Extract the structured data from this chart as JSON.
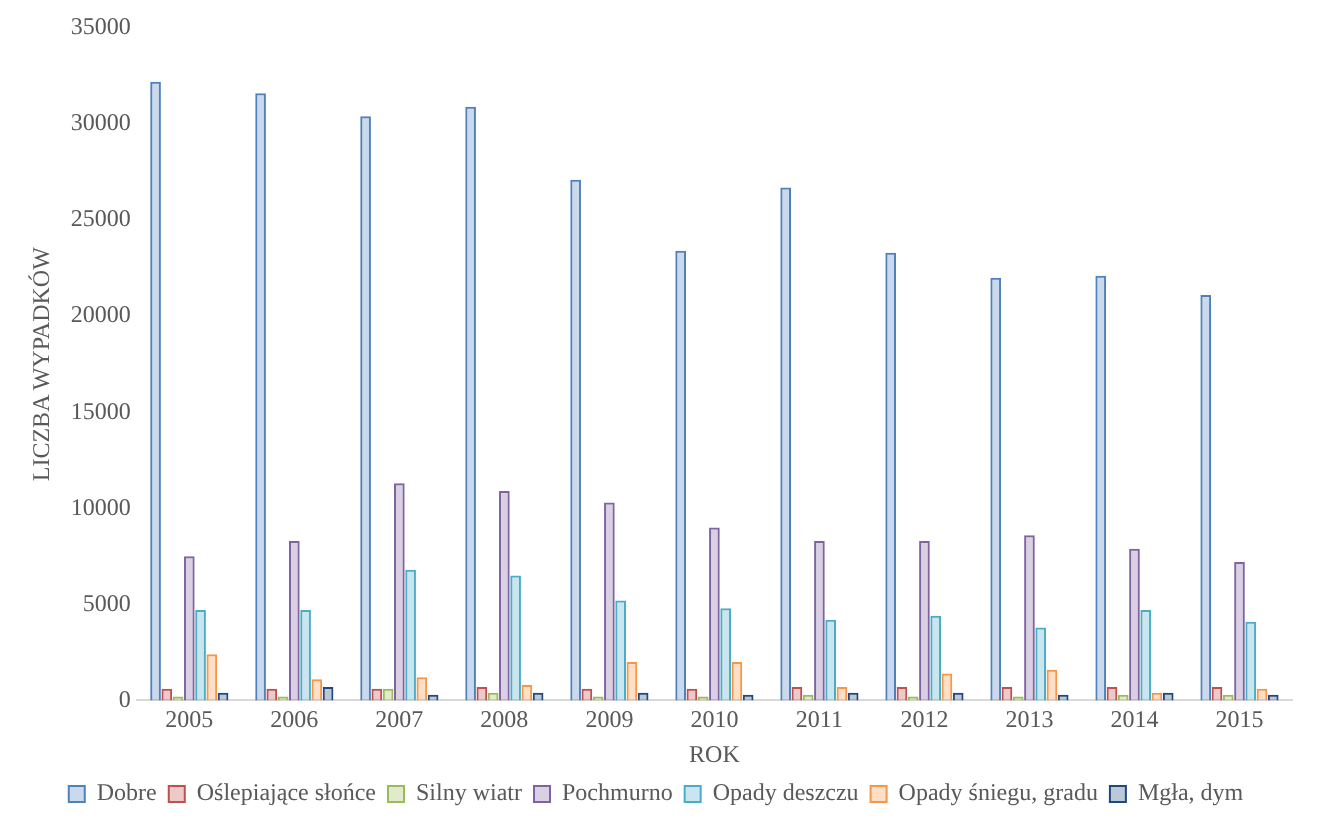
{
  "chart_data": {
    "type": "bar",
    "xlabel": "ROK",
    "ylabel": "LICZBA WYPADKÓW",
    "categories": [
      "2005",
      "2006",
      "2007",
      "2008",
      "2009",
      "2010",
      "2011",
      "2012",
      "2013",
      "2014",
      "2015"
    ],
    "series": [
      {
        "name": "Dobre",
        "color": "#4f81bd",
        "values": [
          32200,
          31600,
          30400,
          30900,
          27100,
          23400,
          26700,
          23300,
          22000,
          22100,
          21100
        ]
      },
      {
        "name": "Oślepiające słońce",
        "color": "#c0504d",
        "values": [
          600,
          600,
          600,
          700,
          600,
          600,
          700,
          700,
          700,
          700,
          700
        ]
      },
      {
        "name": "Silny wiatr",
        "color": "#9bbb59",
        "values": [
          200,
          200,
          600,
          400,
          200,
          200,
          300,
          200,
          200,
          300,
          300
        ]
      },
      {
        "name": "Pochmurno",
        "color": "#8064a2",
        "values": [
          7500,
          8300,
          11300,
          10900,
          10300,
          9000,
          8300,
          8300,
          8600,
          7900,
          7200
        ]
      },
      {
        "name": "Opady deszczu",
        "color": "#4bacc6",
        "values": [
          4700,
          4700,
          6800,
          6500,
          5200,
          4800,
          4200,
          4400,
          3800,
          4700,
          4100
        ]
      },
      {
        "name": "Opady śniegu, gradu",
        "color": "#f79646",
        "values": [
          2400,
          1100,
          1200,
          800,
          2000,
          2000,
          700,
          1400,
          1600,
          400,
          600
        ]
      },
      {
        "name": "Mgła, dym",
        "color": "#1f497d",
        "values": [
          400,
          700,
          300,
          400,
          400,
          300,
          400,
          400,
          300,
          400,
          300
        ]
      }
    ],
    "ylim": [
      0,
      35000
    ],
    "yticks": [
      0,
      5000,
      10000,
      15000,
      20000,
      25000,
      30000,
      35000
    ],
    "grid": false,
    "legend": "bottom"
  }
}
